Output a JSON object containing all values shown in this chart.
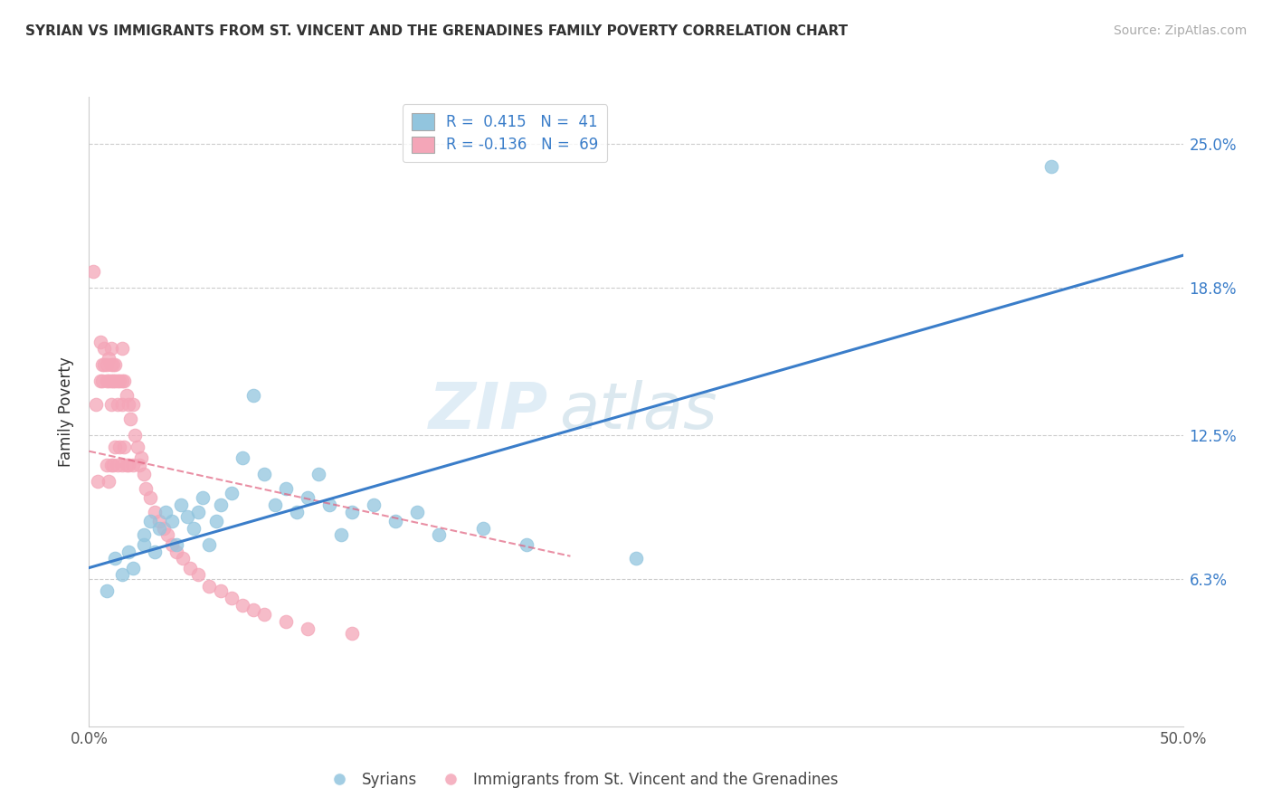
{
  "title": "SYRIAN VS IMMIGRANTS FROM ST. VINCENT AND THE GRENADINES FAMILY POVERTY CORRELATION CHART",
  "source": "Source: ZipAtlas.com",
  "ylabel": "Family Poverty",
  "y_ticks": [
    0.063,
    0.125,
    0.188,
    0.25
  ],
  "y_tick_labels": [
    "6.3%",
    "12.5%",
    "18.8%",
    "25.0%"
  ],
  "xmin": 0.0,
  "xmax": 0.5,
  "ymin": 0.0,
  "ymax": 0.27,
  "blue_color": "#92c5de",
  "pink_color": "#f4a6b8",
  "blue_line_color": "#3a7dc9",
  "pink_line_color": "#e0607e",
  "watermark_zip": "ZIP",
  "watermark_atlas": "atlas",
  "blue_line_x0": 0.0,
  "blue_line_y0": 0.068,
  "blue_line_x1": 0.5,
  "blue_line_y1": 0.202,
  "pink_line_x0": 0.0,
  "pink_line_y0": 0.118,
  "pink_line_x1": 0.22,
  "pink_line_y1": 0.073,
  "syrians_x": [
    0.008,
    0.012,
    0.015,
    0.018,
    0.02,
    0.025,
    0.025,
    0.028,
    0.03,
    0.032,
    0.035,
    0.038,
    0.04,
    0.042,
    0.045,
    0.048,
    0.05,
    0.052,
    0.055,
    0.058,
    0.06,
    0.065,
    0.07,
    0.075,
    0.08,
    0.085,
    0.09,
    0.095,
    0.1,
    0.105,
    0.11,
    0.115,
    0.12,
    0.13,
    0.14,
    0.15,
    0.16,
    0.18,
    0.2,
    0.25,
    0.44
  ],
  "syrians_y": [
    0.058,
    0.072,
    0.065,
    0.075,
    0.068,
    0.082,
    0.078,
    0.088,
    0.075,
    0.085,
    0.092,
    0.088,
    0.078,
    0.095,
    0.09,
    0.085,
    0.092,
    0.098,
    0.078,
    0.088,
    0.095,
    0.1,
    0.115,
    0.142,
    0.108,
    0.095,
    0.102,
    0.092,
    0.098,
    0.108,
    0.095,
    0.082,
    0.092,
    0.095,
    0.088,
    0.092,
    0.082,
    0.085,
    0.078,
    0.072,
    0.24
  ],
  "stvincent_x": [
    0.002,
    0.003,
    0.004,
    0.005,
    0.005,
    0.006,
    0.006,
    0.007,
    0.007,
    0.008,
    0.008,
    0.008,
    0.009,
    0.009,
    0.009,
    0.01,
    0.01,
    0.01,
    0.01,
    0.01,
    0.011,
    0.011,
    0.011,
    0.012,
    0.012,
    0.012,
    0.013,
    0.013,
    0.013,
    0.014,
    0.014,
    0.015,
    0.015,
    0.015,
    0.015,
    0.016,
    0.016,
    0.017,
    0.017,
    0.018,
    0.018,
    0.019,
    0.02,
    0.02,
    0.021,
    0.022,
    0.023,
    0.024,
    0.025,
    0.026,
    0.028,
    0.03,
    0.032,
    0.034,
    0.036,
    0.038,
    0.04,
    0.043,
    0.046,
    0.05,
    0.055,
    0.06,
    0.065,
    0.07,
    0.075,
    0.08,
    0.09,
    0.1,
    0.12
  ],
  "stvincent_y": [
    0.195,
    0.138,
    0.105,
    0.165,
    0.148,
    0.155,
    0.148,
    0.162,
    0.155,
    0.155,
    0.148,
    0.112,
    0.158,
    0.148,
    0.105,
    0.162,
    0.155,
    0.148,
    0.138,
    0.112,
    0.155,
    0.148,
    0.112,
    0.155,
    0.148,
    0.12,
    0.148,
    0.138,
    0.112,
    0.148,
    0.12,
    0.162,
    0.148,
    0.138,
    0.112,
    0.148,
    0.12,
    0.142,
    0.112,
    0.138,
    0.112,
    0.132,
    0.138,
    0.112,
    0.125,
    0.12,
    0.112,
    0.115,
    0.108,
    0.102,
    0.098,
    0.092,
    0.088,
    0.085,
    0.082,
    0.078,
    0.075,
    0.072,
    0.068,
    0.065,
    0.06,
    0.058,
    0.055,
    0.052,
    0.05,
    0.048,
    0.045,
    0.042,
    0.04
  ]
}
